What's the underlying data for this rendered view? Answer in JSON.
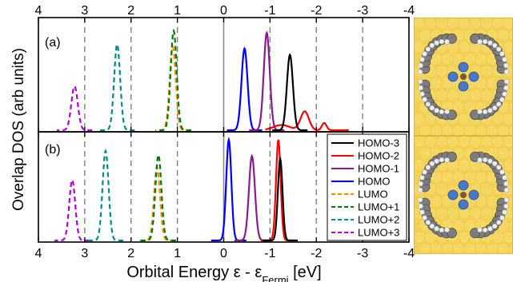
{
  "chart_data": {
    "type": "line",
    "ylabel": "Overlap DOS (arb units)",
    "xlabel_main": "Orbital Energy ε - ε",
    "xlabel_sub": "Fermi",
    "xlabel_unit": " [eV]",
    "x_ticks": [
      "4",
      "3",
      "2",
      "1",
      "0",
      "-1",
      "-2",
      "-3",
      "-4"
    ],
    "x_tick_values": [
      4,
      3,
      2,
      1,
      0,
      -1,
      -2,
      -3,
      -4
    ],
    "xlim": [
      4,
      -4
    ],
    "x_reversed": true,
    "dashed_gridlines_x": [
      3,
      2,
      1,
      -1,
      -2,
      -3
    ],
    "solid_line_x": 0,
    "legend_location": "right of panel (b)",
    "series_style": [
      {
        "name": "HOMO-3",
        "color": "#000000",
        "dash": "solid"
      },
      {
        "name": "HOMO-2",
        "color": "#ff0000",
        "dash": "solid"
      },
      {
        "name": "HOMO-1",
        "color": "#8b1a8b",
        "dash": "solid"
      },
      {
        "name": "HOMO",
        "color": "#0000ff",
        "dash": "solid"
      },
      {
        "name": "LUMO",
        "color": "#ff8c00",
        "dash": "dashed"
      },
      {
        "name": "LUMO+1",
        "color": "#007a00",
        "dash": "dashed"
      },
      {
        "name": "LUMO+2",
        "color": "#008b8b",
        "dash": "dashed"
      },
      {
        "name": "LUMO+3",
        "color": "#b000e0",
        "dash": "dashed"
      }
    ],
    "panels": [
      {
        "label": "(a)",
        "peaks": [
          {
            "series": "HOMO-3",
            "center": -1.43,
            "height": 0.72,
            "width": 0.065
          },
          {
            "series": "HOMO-2",
            "center": -1.75,
            "height": 0.18,
            "width": 0.09,
            "tail": true
          },
          {
            "series": "HOMO-1",
            "center": -0.93,
            "height": 0.93,
            "width": 0.065
          },
          {
            "series": "HOMO",
            "center": -0.45,
            "height": 0.78,
            "width": 0.065
          },
          {
            "series": "LUMO",
            "center": 1.1,
            "height": 0.8,
            "width": 0.065
          },
          {
            "series": "LUMO+1",
            "center": 1.08,
            "height": 0.95,
            "width": 0.065
          },
          {
            "series": "LUMO+2",
            "center": 2.3,
            "height": 0.82,
            "width": 0.065
          },
          {
            "series": "LUMO+3",
            "center": 3.22,
            "height": 0.42,
            "width": 0.07
          }
        ]
      },
      {
        "label": "(b)",
        "peaks": [
          {
            "series": "HOMO-3",
            "center": -1.22,
            "height": 0.81,
            "width": 0.05
          },
          {
            "series": "HOMO-2",
            "center": -1.18,
            "height": 1.0,
            "width": 0.05
          },
          {
            "series": "HOMO-1",
            "center": -0.61,
            "height": 0.84,
            "width": 0.065
          },
          {
            "series": "HOMO",
            "center": -0.11,
            "height": 1.0,
            "width": 0.055
          },
          {
            "series": "LUMO",
            "center": 1.44,
            "height": 0.73,
            "width": 0.065
          },
          {
            "series": "LUMO+1",
            "center": 1.41,
            "height": 0.85,
            "width": 0.065
          },
          {
            "series": "LUMO+2",
            "center": 2.55,
            "height": 0.89,
            "width": 0.065
          },
          {
            "series": "LUMO+3",
            "center": 3.27,
            "height": 0.6,
            "width": 0.065
          }
        ]
      }
    ]
  },
  "legend": {
    "entries": [
      "HOMO-3",
      "HOMO-2",
      "HOMO-1",
      "HOMO",
      "LUMO",
      "LUMO+1",
      "LUMO+2",
      "LUMO+3"
    ]
  },
  "images": [
    {
      "name": "molecule-on-surface-a"
    },
    {
      "name": "molecule-on-surface-b"
    }
  ]
}
